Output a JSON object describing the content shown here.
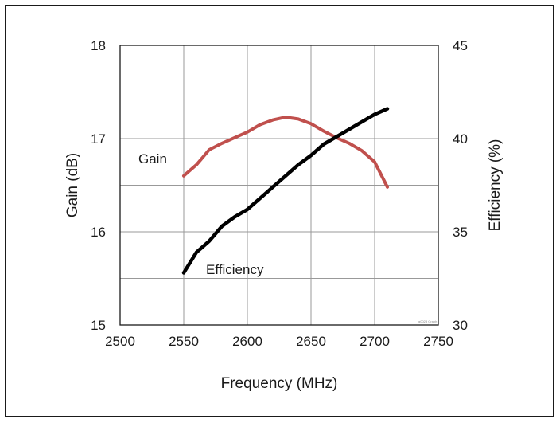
{
  "chart_data": {
    "type": "line",
    "title": "",
    "xlabel": "Frequency (MHz)",
    "ylabel": "Gain (dB)",
    "ylabel_right": "Efficiency (%)",
    "xlim": [
      2500,
      2750
    ],
    "ylim": [
      15,
      18
    ],
    "ylim_right": [
      30,
      45
    ],
    "x_ticks": [
      "2500",
      "2550",
      "2600",
      "2650",
      "2700",
      "2750"
    ],
    "y_ticks": [
      "15",
      "16",
      "17",
      "18"
    ],
    "y_ticks_right": [
      "30",
      "35",
      "40",
      "45"
    ],
    "grid": true,
    "colors": {
      "gain": "#c0504d",
      "efficiency": "#000000",
      "grid": "#999999"
    },
    "series": [
      {
        "name": "Gain",
        "axis": "left",
        "x": [
          2550,
          2560,
          2570,
          2580,
          2590,
          2600,
          2610,
          2620,
          2630,
          2640,
          2650,
          2660,
          2670,
          2680,
          2690,
          2700,
          2710
        ],
        "values": [
          16.6,
          16.72,
          16.88,
          16.95,
          17.01,
          17.07,
          17.15,
          17.2,
          17.23,
          17.21,
          17.16,
          17.08,
          17.01,
          16.95,
          16.87,
          16.75,
          16.48
        ]
      },
      {
        "name": "Efficiency",
        "axis": "right",
        "x": [
          2550,
          2560,
          2570,
          2580,
          2590,
          2600,
          2610,
          2620,
          2630,
          2640,
          2650,
          2660,
          2670,
          2680,
          2690,
          2700,
          2710
        ],
        "values": [
          32.8,
          33.9,
          34.5,
          35.3,
          35.8,
          36.2,
          36.8,
          37.4,
          38.0,
          38.6,
          39.1,
          39.7,
          40.1,
          40.5,
          40.9,
          41.3,
          41.6
        ]
      }
    ],
    "annotations": [
      "Gain",
      "Efficiency"
    ],
    "watermark": "g0023 Graph"
  }
}
